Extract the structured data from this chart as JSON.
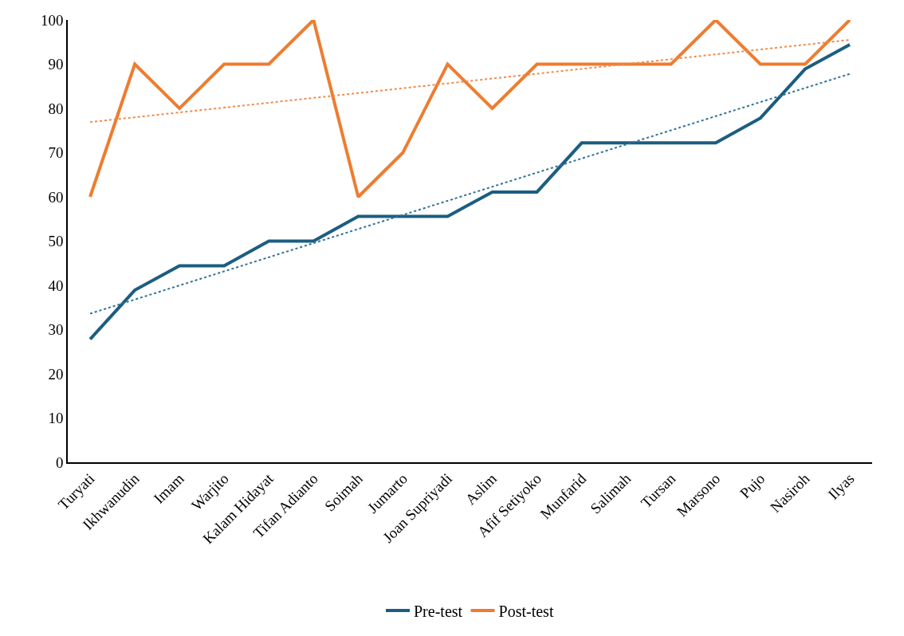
{
  "chart_data": {
    "type": "line",
    "categories": [
      "Turyati",
      "Ikhwanudin",
      "Imam",
      "Warjito",
      "Kalam Hidayat",
      "Tifan Adianto",
      "Soimah",
      "Jumarto",
      "Joan Supriyadi",
      "Aslim",
      "Afif Setiyoko",
      "Munfarid",
      "Salimah",
      "Tursan",
      "Marsono",
      "Pujo",
      "Nasiroh",
      "Ilyas"
    ],
    "series": [
      {
        "name": "Pre-test",
        "color": "#1b5e80",
        "values": [
          27.8,
          38.9,
          44.4,
          44.4,
          50,
          50,
          55.6,
          55.6,
          55.6,
          61.1,
          61.1,
          72.2,
          72.2,
          72.2,
          72.2,
          77.8,
          88.9,
          94.4
        ]
      },
      {
        "name": "Post-test",
        "color": "#ed7d31",
        "values": [
          60,
          90,
          80,
          90,
          90,
          100,
          60,
          70,
          90,
          80,
          90,
          90,
          90,
          90,
          100,
          90,
          90,
          100
        ]
      },
      {
        "type": "line",
        "color": "#2e7396",
        "line_style": "dotted",
        "x": [
          "Turyati",
          "Ilyas"
        ],
        "values": [
          33.6,
          87.8
        ]
      },
      {
        "type": "line",
        "color": "#f08a4b",
        "line_style": "dotted",
        "x": [
          "Turyati",
          "Ilyas"
        ],
        "values": [
          76.9,
          95.5
        ]
      }
    ],
    "ylim": [
      0,
      100
    ],
    "yticks": [
      0,
      10,
      20,
      30,
      40,
      50,
      60,
      70,
      80,
      90,
      100
    ],
    "grid": false,
    "legend": "bottom",
    "marker": "none",
    "line_style": "solid"
  }
}
